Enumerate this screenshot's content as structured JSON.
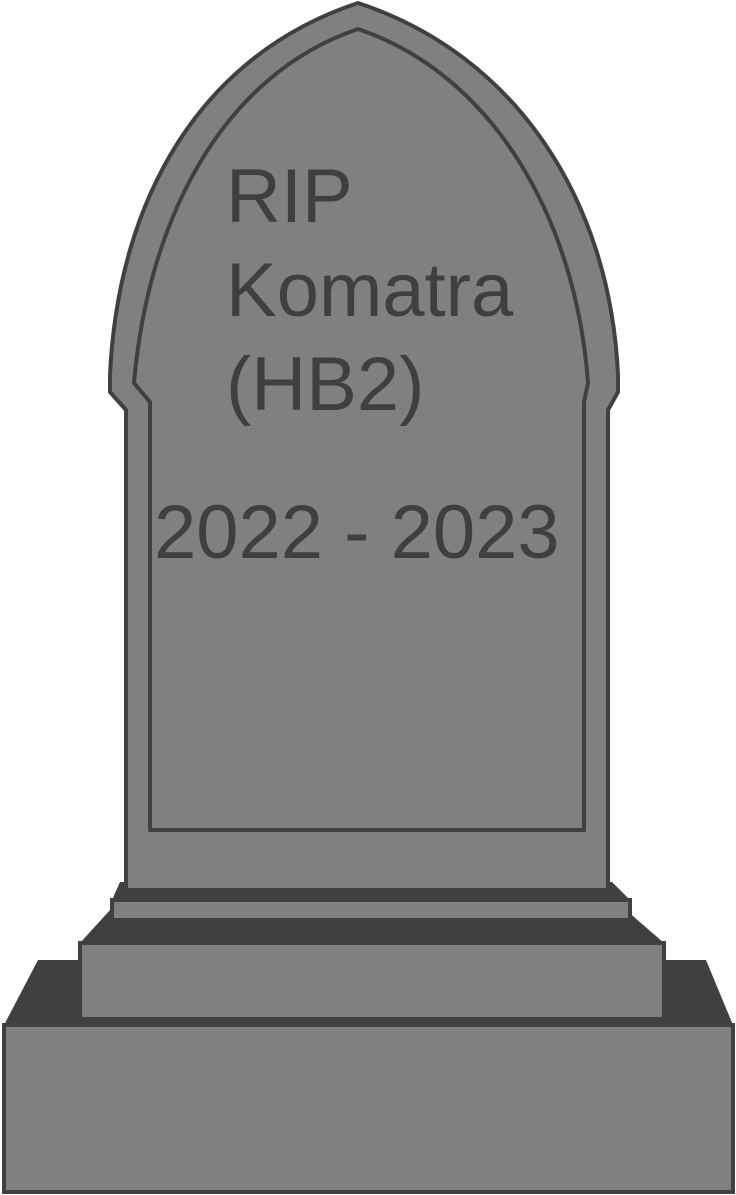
{
  "epitaph": {
    "line1": "RIP",
    "line2": "Komatra",
    "line3": "(HB2)"
  },
  "dates": {
    "range": "2022 - 2023"
  },
  "colors": {
    "stone": "#808080",
    "outline": "#404040",
    "shadow": "#404040",
    "text": "#3f3f3f"
  }
}
